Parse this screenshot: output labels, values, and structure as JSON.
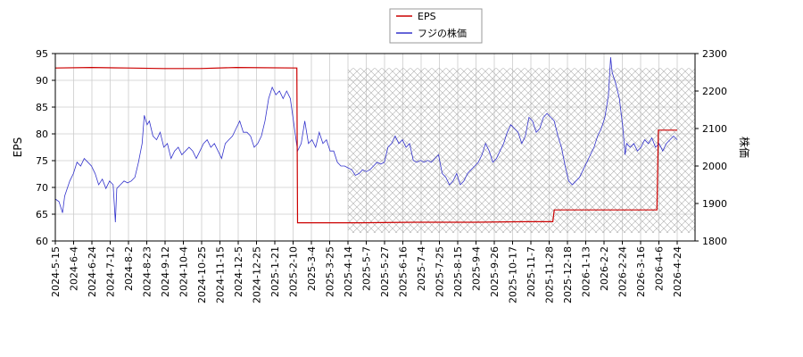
{
  "chart_data": {
    "type": "line",
    "legend": {
      "placement": "top-center",
      "entries": [
        {
          "label": "EPS",
          "color": "#cc0000"
        },
        {
          "label": "フジの株価",
          "color": "#3333cc"
        }
      ]
    },
    "xlabels": [
      "2024-5-15",
      "2024-6-4",
      "2024-6-24",
      "2024-7-12",
      "2024-8-2",
      "2024-8-23",
      "2024-9-12",
      "2024-10-4",
      "2024-10-25",
      "2024-11-15",
      "2024-12-5",
      "2024-12-25",
      "2025-1-21",
      "2025-2-10",
      "2025-3-4",
      "2025-3-25",
      "2025-4-14",
      "2025-5-7",
      "2025-5-27",
      "2025-6-16",
      "2025-7-4",
      "2025-7-25",
      "2025-8-15",
      "2025-9-4",
      "2025-9-26",
      "2025-10-17",
      "2025-11-7",
      "2025-11-28",
      "2025-12-18",
      "2026-1-13",
      "2026-2-2",
      "2026-2-24",
      "2026-3-16",
      "2026-4-6",
      "2026-4-24"
    ],
    "left_axis": {
      "label": "EPS",
      "min": 60,
      "max": 95,
      "ticks": [
        60,
        65,
        70,
        75,
        80,
        85,
        90,
        95
      ]
    },
    "right_axis": {
      "label": "株価",
      "min": 1800,
      "max": 2300,
      "ticks": [
        1800,
        1900,
        2000,
        2100,
        2200,
        2300
      ]
    },
    "grid": true,
    "eps_series": {
      "name": "EPS",
      "points": [
        [
          0,
          92.3
        ],
        [
          5,
          92.4
        ],
        [
          10,
          92.3
        ],
        [
          15,
          92.2
        ],
        [
          20,
          92.2
        ],
        [
          25,
          92.4
        ],
        [
          33.4,
          92.3
        ],
        [
          33.5,
          63.4
        ],
        [
          42,
          63.4
        ],
        [
          50,
          63.5
        ],
        [
          58,
          63.5
        ],
        [
          65,
          63.6
        ],
        [
          68.8,
          63.6
        ],
        [
          69,
          65.8
        ],
        [
          75,
          65.8
        ],
        [
          80,
          65.8
        ],
        [
          83.2,
          65.8
        ],
        [
          83.4,
          80.7
        ],
        [
          86,
          80.7
        ]
      ]
    },
    "price_series": {
      "name": "フジの株価",
      "points": [
        [
          0,
          1912
        ],
        [
          0.5,
          1905
        ],
        [
          1.0,
          1875
        ],
        [
          1.3,
          1920
        ],
        [
          2.0,
          1960
        ],
        [
          2.5,
          1980
        ],
        [
          3.0,
          2010
        ],
        [
          3.5,
          2000
        ],
        [
          4.0,
          2020
        ],
        [
          4.5,
          2010
        ],
        [
          5.0,
          2000
        ],
        [
          5.5,
          1980
        ],
        [
          6.0,
          1950
        ],
        [
          6.5,
          1965
        ],
        [
          7.0,
          1940
        ],
        [
          7.5,
          1960
        ],
        [
          8.0,
          1950
        ],
        [
          8.3,
          1850
        ],
        [
          8.5,
          1940
        ],
        [
          9.0,
          1950
        ],
        [
          9.5,
          1960
        ],
        [
          10.0,
          1955
        ],
        [
          10.5,
          1960
        ],
        [
          11.0,
          1970
        ],
        [
          11.5,
          2010
        ],
        [
          12.0,
          2060
        ],
        [
          12.3,
          2135
        ],
        [
          12.7,
          2110
        ],
        [
          13.0,
          2120
        ],
        [
          13.5,
          2080
        ],
        [
          14.0,
          2070
        ],
        [
          14.5,
          2090
        ],
        [
          15.0,
          2050
        ],
        [
          15.5,
          2060
        ],
        [
          16.0,
          2020
        ],
        [
          16.5,
          2040
        ],
        [
          17.0,
          2050
        ],
        [
          17.5,
          2030
        ],
        [
          18.0,
          2040
        ],
        [
          18.5,
          2050
        ],
        [
          19.0,
          2040
        ],
        [
          19.5,
          2020
        ],
        [
          20.0,
          2040
        ],
        [
          20.5,
          2060
        ],
        [
          21.0,
          2070
        ],
        [
          21.5,
          2050
        ],
        [
          22.0,
          2060
        ],
        [
          22.5,
          2040
        ],
        [
          23.0,
          2020
        ],
        [
          23.5,
          2060
        ],
        [
          24.0,
          2070
        ],
        [
          24.5,
          2080
        ],
        [
          25.0,
          2100
        ],
        [
          25.5,
          2120
        ],
        [
          26.0,
          2090
        ],
        [
          26.5,
          2090
        ],
        [
          27.0,
          2080
        ],
        [
          27.5,
          2050
        ],
        [
          28.0,
          2060
        ],
        [
          28.5,
          2080
        ],
        [
          29.0,
          2120
        ],
        [
          29.5,
          2180
        ],
        [
          30.0,
          2210
        ],
        [
          30.5,
          2190
        ],
        [
          31.0,
          2200
        ],
        [
          31.5,
          2180
        ],
        [
          32.0,
          2200
        ],
        [
          32.5,
          2180
        ],
        [
          33.0,
          2110
        ],
        [
          33.5,
          2040
        ],
        [
          34.0,
          2060
        ],
        [
          34.5,
          2120
        ],
        [
          35.0,
          2060
        ],
        [
          35.5,
          2070
        ],
        [
          36.0,
          2050
        ],
        [
          36.5,
          2090
        ],
        [
          37.0,
          2060
        ],
        [
          37.5,
          2070
        ],
        [
          38.0,
          2040
        ],
        [
          38.5,
          2040
        ],
        [
          39.0,
          2010
        ],
        [
          39.5,
          2000
        ],
        [
          40.0,
          2000
        ],
        [
          40.5,
          1995
        ],
        [
          41.0,
          1990
        ],
        [
          41.5,
          1975
        ],
        [
          42.0,
          1980
        ],
        [
          42.5,
          1990
        ],
        [
          43.0,
          1985
        ],
        [
          43.5,
          1990
        ],
        [
          44.0,
          2000
        ],
        [
          44.5,
          2010
        ],
        [
          45.0,
          2005
        ],
        [
          45.5,
          2010
        ],
        [
          46.0,
          2050
        ],
        [
          46.5,
          2060
        ],
        [
          47.0,
          2080
        ],
        [
          47.5,
          2060
        ],
        [
          48.0,
          2070
        ],
        [
          48.5,
          2050
        ],
        [
          49.0,
          2060
        ],
        [
          49.5,
          2015
        ],
        [
          50.0,
          2010
        ],
        [
          50.5,
          2015
        ],
        [
          51.0,
          2010
        ],
        [
          51.5,
          2015
        ],
        [
          52.0,
          2010
        ],
        [
          52.5,
          2020
        ],
        [
          53.0,
          2030
        ],
        [
          53.5,
          1980
        ],
        [
          54.0,
          1970
        ],
        [
          54.5,
          1950
        ],
        [
          55.0,
          1960
        ],
        [
          55.5,
          1980
        ],
        [
          56.0,
          1950
        ],
        [
          56.5,
          1960
        ],
        [
          57.0,
          1980
        ],
        [
          57.5,
          1990
        ],
        [
          58.0,
          2000
        ],
        [
          58.5,
          2010
        ],
        [
          59.0,
          2030
        ],
        [
          59.5,
          2060
        ],
        [
          60.0,
          2040
        ],
        [
          60.5,
          2010
        ],
        [
          61.0,
          2020
        ],
        [
          61.5,
          2040
        ],
        [
          62.0,
          2060
        ],
        [
          62.5,
          2090
        ],
        [
          63.0,
          2110
        ],
        [
          63.5,
          2100
        ],
        [
          64.0,
          2090
        ],
        [
          64.5,
          2060
        ],
        [
          65.0,
          2080
        ],
        [
          65.5,
          2130
        ],
        [
          66.0,
          2120
        ],
        [
          66.5,
          2090
        ],
        [
          67.0,
          2100
        ],
        [
          67.5,
          2130
        ],
        [
          68.0,
          2140
        ],
        [
          68.5,
          2130
        ],
        [
          69.0,
          2120
        ],
        [
          69.5,
          2080
        ],
        [
          70.0,
          2050
        ],
        [
          70.5,
          2000
        ],
        [
          71.0,
          1960
        ],
        [
          71.5,
          1950
        ],
        [
          72.0,
          1960
        ],
        [
          72.5,
          1970
        ],
        [
          73.0,
          1990
        ],
        [
          73.5,
          2010
        ],
        [
          74.0,
          2030
        ],
        [
          74.5,
          2050
        ],
        [
          75.0,
          2080
        ],
        [
          75.5,
          2100
        ],
        [
          76.0,
          2130
        ],
        [
          76.5,
          2190
        ],
        [
          76.8,
          2290
        ],
        [
          77.0,
          2250
        ],
        [
          77.5,
          2220
        ],
        [
          78.0,
          2180
        ],
        [
          78.5,
          2100
        ],
        [
          78.8,
          2030
        ],
        [
          79.0,
          2060
        ],
        [
          79.5,
          2050
        ],
        [
          80.0,
          2060
        ],
        [
          80.5,
          2040
        ],
        [
          81.0,
          2050
        ],
        [
          81.5,
          2070
        ],
        [
          82.0,
          2060
        ],
        [
          82.5,
          2075
        ],
        [
          83.0,
          2050
        ],
        [
          83.5,
          2060
        ],
        [
          84.0,
          2040
        ],
        [
          84.5,
          2060
        ],
        [
          85.0,
          2070
        ],
        [
          85.5,
          2080
        ],
        [
          86.0,
          2070
        ]
      ]
    }
  }
}
